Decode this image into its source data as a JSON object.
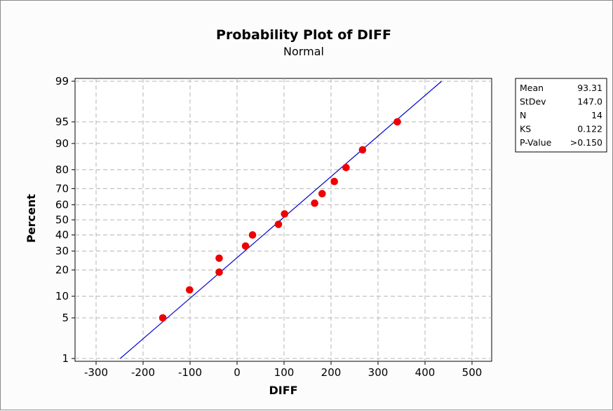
{
  "chart_data": {
    "type": "scatter",
    "title": "Probability Plot of DIFF",
    "subtitle": "Normal",
    "xlabel": "DIFF",
    "ylabel": "Percent",
    "xlim": [
      -300,
      500
    ],
    "x_ticks": [
      -300,
      -200,
      -100,
      0,
      100,
      200,
      300,
      400,
      500
    ],
    "y_scale": "normal-probability",
    "ylim": [
      1,
      99
    ],
    "y_ticks": [
      1,
      5,
      10,
      20,
      30,
      40,
      50,
      60,
      70,
      80,
      90,
      95,
      99
    ],
    "grid": true,
    "fit_line": {
      "type": "normal",
      "mean": 93.31,
      "stdev": 147.0,
      "color": "#0000cc"
    },
    "marker_color": "#ee0000",
    "points": [
      {
        "x": -158,
        "y": 5
      },
      {
        "x": -101,
        "y": 12
      },
      {
        "x": -38,
        "y": 19
      },
      {
        "x": -38,
        "y": 26
      },
      {
        "x": 18,
        "y": 33
      },
      {
        "x": 33,
        "y": 40
      },
      {
        "x": 88,
        "y": 47
      },
      {
        "x": 101,
        "y": 54
      },
      {
        "x": 165,
        "y": 61
      },
      {
        "x": 181,
        "y": 67
      },
      {
        "x": 207,
        "y": 74
      },
      {
        "x": 232,
        "y": 81
      },
      {
        "x": 267,
        "y": 88
      },
      {
        "x": 341,
        "y": 95
      }
    ]
  },
  "stats_table": [
    {
      "label": "Mean",
      "value": "93.31"
    },
    {
      "label": "StDev",
      "value": "147.0"
    },
    {
      "label": "N",
      "value": "14"
    },
    {
      "label": "KS",
      "value": "0.122"
    },
    {
      "label": "P-Value",
      "value": ">0.150"
    }
  ]
}
